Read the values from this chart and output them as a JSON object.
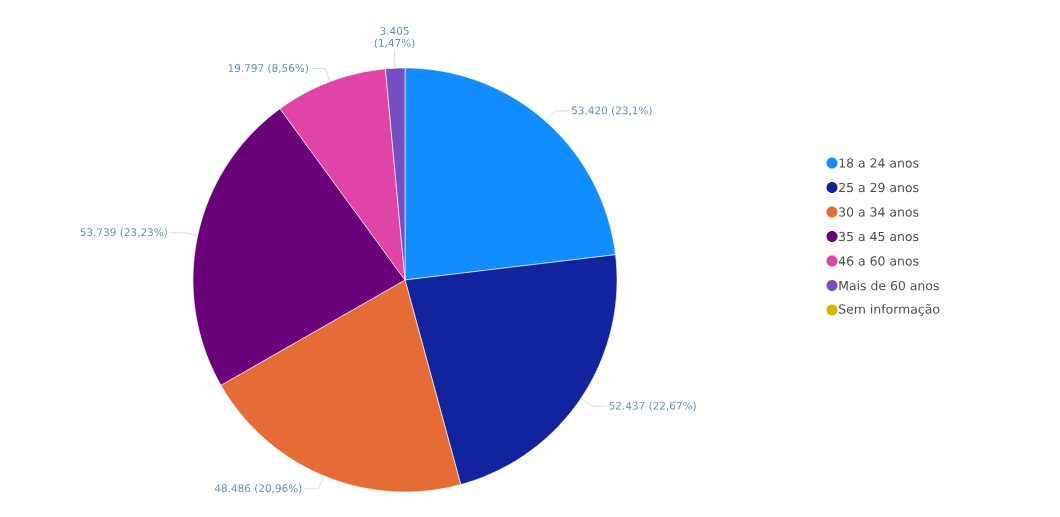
{
  "chart_data": {
    "type": "pie",
    "categories": [
      "18 a 24 anos",
      "25 a 29 anos",
      "30 a 34 anos",
      "35 a 45 anos",
      "46 a 60 anos",
      "Mais de 60 anos",
      "Sem informação"
    ],
    "values": [
      53420,
      52437,
      48486,
      53739,
      19797,
      3405,
      0
    ],
    "colors": [
      "#118dff",
      "#12239e",
      "#e66c37",
      "#6b007b",
      "#e044a7",
      "#744ec2",
      "#d9b300"
    ],
    "value_labels": [
      "53.420 (23,1%)",
      "52.437 (22,67%)",
      "48.486 (20,96%)",
      "53.739 (23,23%)",
      "19.797 (8,56%)",
      "3.405 (1,47%)",
      null
    ],
    "legend": "right"
  }
}
